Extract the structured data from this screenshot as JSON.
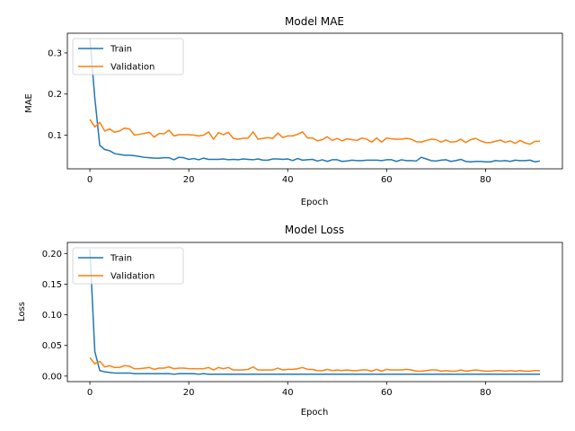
{
  "chart_data": [
    {
      "type": "line",
      "title": "Model MAE",
      "xlabel": "Epoch",
      "ylabel": "MAE",
      "xlim": [
        -4.55,
        95.55
      ],
      "ylim": [
        0.018,
        0.348
      ],
      "xticks": [
        0,
        20,
        40,
        60,
        80
      ],
      "yticks": [
        0.1,
        0.2,
        0.3
      ],
      "ytick_labels": [
        "0.1",
        "0.2",
        "0.3"
      ],
      "grid": false,
      "legend_position": "upper left",
      "series": [
        {
          "name": "Train",
          "color": "#1f77b4",
          "values": [
            0.335,
            0.19,
            0.075,
            0.065,
            0.062,
            0.055,
            0.053,
            0.051,
            0.051,
            0.05,
            0.048,
            0.046,
            0.045,
            0.044,
            0.044,
            0.045,
            0.045,
            0.04,
            0.046,
            0.045,
            0.041,
            0.043,
            0.04,
            0.044,
            0.041,
            0.041,
            0.041,
            0.042,
            0.04,
            0.041,
            0.04,
            0.042,
            0.041,
            0.04,
            0.042,
            0.039,
            0.039,
            0.042,
            0.042,
            0.041,
            0.042,
            0.038,
            0.043,
            0.039,
            0.04,
            0.041,
            0.037,
            0.04,
            0.036,
            0.04,
            0.04,
            0.036,
            0.037,
            0.039,
            0.038,
            0.038,
            0.039,
            0.039,
            0.039,
            0.038,
            0.04,
            0.04,
            0.036,
            0.04,
            0.038,
            0.038,
            0.037,
            0.046,
            0.042,
            0.038,
            0.037,
            0.039,
            0.04,
            0.036,
            0.038,
            0.041,
            0.036,
            0.035,
            0.036,
            0.036,
            0.035,
            0.035,
            0.038,
            0.037,
            0.038,
            0.036,
            0.039,
            0.038,
            0.038,
            0.039,
            0.035,
            0.037
          ]
        },
        {
          "name": "Validation",
          "color": "#ff7f0e",
          "values": [
            0.138,
            0.12,
            0.131,
            0.11,
            0.115,
            0.107,
            0.11,
            0.117,
            0.115,
            0.1,
            0.102,
            0.104,
            0.107,
            0.095,
            0.104,
            0.103,
            0.112,
            0.098,
            0.101,
            0.101,
            0.101,
            0.1,
            0.098,
            0.1,
            0.108,
            0.09,
            0.106,
            0.101,
            0.107,
            0.092,
            0.09,
            0.092,
            0.093,
            0.108,
            0.09,
            0.092,
            0.094,
            0.092,
            0.105,
            0.094,
            0.098,
            0.098,
            0.102,
            0.108,
            0.093,
            0.093,
            0.086,
            0.089,
            0.096,
            0.087,
            0.092,
            0.086,
            0.091,
            0.089,
            0.087,
            0.093,
            0.09,
            0.083,
            0.093,
            0.083,
            0.093,
            0.091,
            0.09,
            0.09,
            0.092,
            0.09,
            0.084,
            0.083,
            0.087,
            0.09,
            0.089,
            0.083,
            0.088,
            0.083,
            0.084,
            0.09,
            0.082,
            0.089,
            0.092,
            0.086,
            0.082,
            0.082,
            0.085,
            0.088,
            0.082,
            0.086,
            0.08,
            0.087,
            0.081,
            0.078,
            0.085,
            0.085
          ]
        }
      ]
    },
    {
      "type": "line",
      "title": "Model Loss",
      "xlabel": "Epoch",
      "ylabel": "Loss",
      "xlim": [
        -4.55,
        95.55
      ],
      "ylim": [
        -0.009,
        0.218
      ],
      "xticks": [
        0,
        20,
        40,
        60,
        80
      ],
      "yticks": [
        0.0,
        0.05,
        0.1,
        0.15,
        0.2
      ],
      "ytick_labels": [
        "0.00",
        "0.05",
        "0.10",
        "0.15",
        "0.20"
      ],
      "grid": false,
      "legend_position": "upper left",
      "series": [
        {
          "name": "Train",
          "color": "#1f77b4",
          "values": [
            0.207,
            0.04,
            0.009,
            0.007,
            0.006,
            0.005,
            0.005,
            0.005,
            0.005,
            0.004,
            0.004,
            0.004,
            0.004,
            0.004,
            0.004,
            0.004,
            0.004,
            0.003,
            0.004,
            0.004,
            0.004,
            0.004,
            0.003,
            0.004,
            0.003,
            0.003,
            0.003,
            0.003,
            0.003,
            0.003,
            0.003,
            0.003,
            0.003,
            0.003,
            0.003,
            0.003,
            0.003,
            0.003,
            0.003,
            0.003,
            0.003,
            0.003,
            0.003,
            0.003,
            0.003,
            0.003,
            0.003,
            0.003,
            0.003,
            0.003,
            0.003,
            0.003,
            0.003,
            0.003,
            0.003,
            0.003,
            0.003,
            0.003,
            0.003,
            0.003,
            0.003,
            0.003,
            0.003,
            0.003,
            0.003,
            0.003,
            0.003,
            0.003,
            0.003,
            0.003,
            0.003,
            0.003,
            0.003,
            0.003,
            0.003,
            0.003,
            0.003,
            0.003,
            0.003,
            0.003,
            0.003,
            0.003,
            0.003,
            0.003,
            0.003,
            0.003,
            0.003,
            0.003,
            0.003,
            0.003,
            0.003,
            0.003
          ]
        },
        {
          "name": "Validation",
          "color": "#ff7f0e",
          "values": [
            0.03,
            0.02,
            0.024,
            0.015,
            0.017,
            0.014,
            0.014,
            0.017,
            0.016,
            0.012,
            0.012,
            0.013,
            0.014,
            0.011,
            0.013,
            0.013,
            0.015,
            0.012,
            0.013,
            0.013,
            0.012,
            0.012,
            0.012,
            0.012,
            0.014,
            0.01,
            0.014,
            0.012,
            0.014,
            0.01,
            0.01,
            0.01,
            0.011,
            0.015,
            0.01,
            0.01,
            0.01,
            0.01,
            0.013,
            0.01,
            0.011,
            0.011,
            0.012,
            0.014,
            0.011,
            0.011,
            0.009,
            0.009,
            0.011,
            0.009,
            0.01,
            0.009,
            0.01,
            0.009,
            0.009,
            0.01,
            0.01,
            0.008,
            0.011,
            0.008,
            0.011,
            0.01,
            0.01,
            0.01,
            0.011,
            0.01,
            0.008,
            0.008,
            0.009,
            0.01,
            0.01,
            0.008,
            0.009,
            0.008,
            0.008,
            0.01,
            0.008,
            0.009,
            0.01,
            0.009,
            0.008,
            0.008,
            0.009,
            0.009,
            0.008,
            0.009,
            0.008,
            0.009,
            0.008,
            0.008,
            0.009,
            0.009
          ]
        }
      ]
    }
  ]
}
